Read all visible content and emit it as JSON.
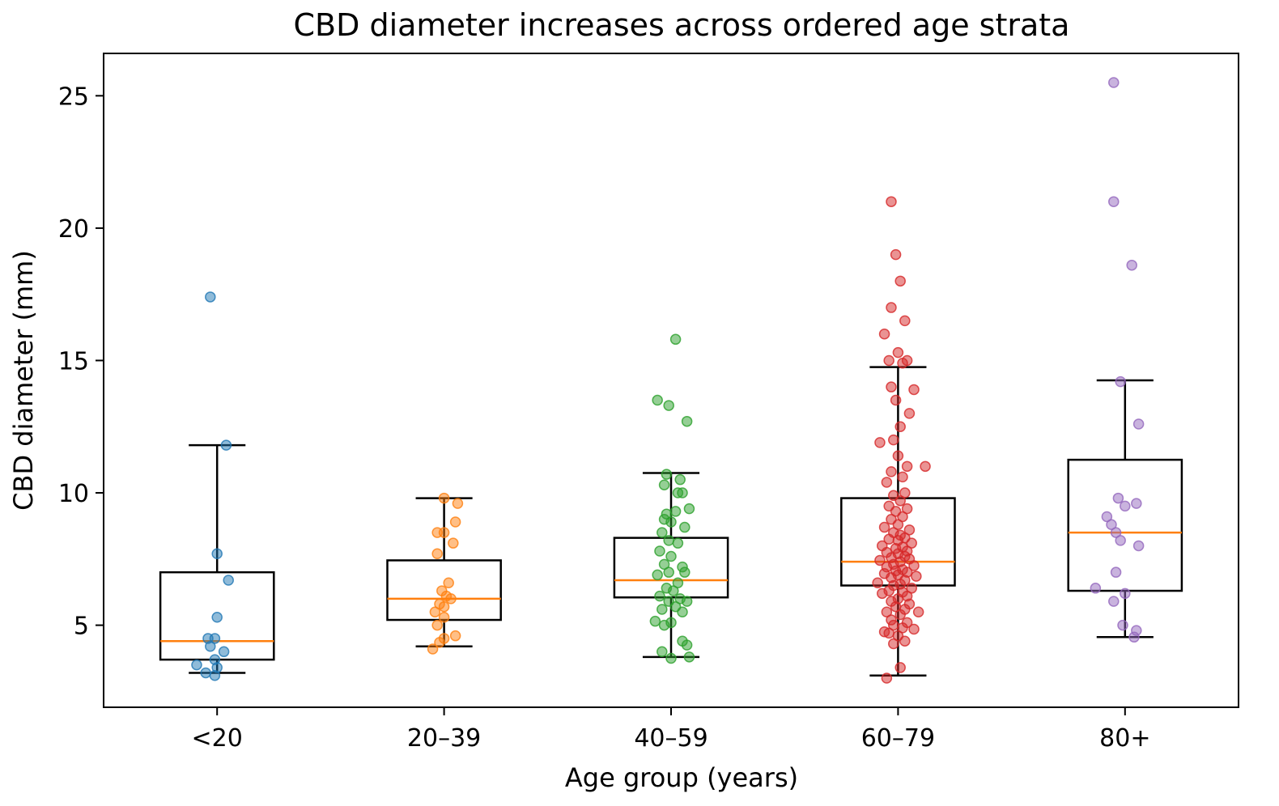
{
  "chart_data": {
    "type": "box",
    "title": "CBD diameter increases across ordered age strata",
    "xlabel": "Age group (years)",
    "ylabel": "CBD diameter (mm)",
    "ylim": [
      1.9,
      26.6
    ],
    "yticks": [
      5,
      10,
      15,
      20,
      25
    ],
    "grid": false,
    "categories": [
      "<20",
      "20–39",
      "40–59",
      "60–79",
      "80+"
    ],
    "colors": [
      "#1f77b4",
      "#ff7f0e",
      "#2ca02c",
      "#d62728",
      "#9467bd"
    ],
    "median_color": "#ff7f0e",
    "boxes": [
      {
        "whisker_low": 3.2,
        "q1": 3.7,
        "median": 4.4,
        "q3": 7.0,
        "whisker_high": 11.8
      },
      {
        "whisker_low": 4.2,
        "q1": 5.2,
        "median": 6.0,
        "q3": 7.45,
        "whisker_high": 9.8
      },
      {
        "whisker_low": 3.8,
        "q1": 6.05,
        "median": 6.7,
        "q3": 8.3,
        "whisker_high": 10.75
      },
      {
        "whisker_low": 3.1,
        "q1": 6.5,
        "median": 7.4,
        "q3": 9.8,
        "whisker_high": 14.75
      },
      {
        "whisker_low": 4.55,
        "q1": 6.3,
        "median": 8.5,
        "q3": 11.25,
        "whisker_high": 14.25
      }
    ],
    "points": [
      [
        {
          "dx": -0.03,
          "y": 17.4
        },
        {
          "dx": 0.04,
          "y": 11.8
        },
        {
          "dx": 0.0,
          "y": 7.7
        },
        {
          "dx": 0.05,
          "y": 6.7
        },
        {
          "dx": 0.0,
          "y": 5.3
        },
        {
          "dx": -0.04,
          "y": 4.5
        },
        {
          "dx": -0.01,
          "y": 4.5
        },
        {
          "dx": -0.03,
          "y": 4.2
        },
        {
          "dx": 0.03,
          "y": 4.0
        },
        {
          "dx": -0.01,
          "y": 3.7
        },
        {
          "dx": -0.09,
          "y": 3.5
        },
        {
          "dx": 0.0,
          "y": 3.4
        },
        {
          "dx": -0.05,
          "y": 3.2
        },
        {
          "dx": -0.01,
          "y": 3.1
        }
      ],
      [
        {
          "dx": 0.0,
          "y": 9.8
        },
        {
          "dx": 0.06,
          "y": 9.6
        },
        {
          "dx": 0.05,
          "y": 8.9
        },
        {
          "dx": -0.03,
          "y": 8.5
        },
        {
          "dx": 0.0,
          "y": 8.5
        },
        {
          "dx": 0.04,
          "y": 8.1
        },
        {
          "dx": -0.03,
          "y": 7.7
        },
        {
          "dx": 0.02,
          "y": 6.6
        },
        {
          "dx": -0.01,
          "y": 6.3
        },
        {
          "dx": 0.01,
          "y": 6.1
        },
        {
          "dx": 0.03,
          "y": 6.0
        },
        {
          "dx": -0.02,
          "y": 5.8
        },
        {
          "dx": 0.0,
          "y": 5.7
        },
        {
          "dx": -0.04,
          "y": 5.5
        },
        {
          "dx": 0.0,
          "y": 5.3
        },
        {
          "dx": -0.03,
          "y": 5.0
        },
        {
          "dx": 0.05,
          "y": 4.6
        },
        {
          "dx": 0.0,
          "y": 4.5
        },
        {
          "dx": -0.02,
          "y": 4.35
        },
        {
          "dx": -0.05,
          "y": 4.1
        }
      ],
      [
        {
          "dx": 0.02,
          "y": 15.8
        },
        {
          "dx": -0.06,
          "y": 13.5
        },
        {
          "dx": -0.01,
          "y": 13.3
        },
        {
          "dx": 0.07,
          "y": 12.7
        },
        {
          "dx": -0.02,
          "y": 10.7
        },
        {
          "dx": 0.04,
          "y": 10.5
        },
        {
          "dx": -0.03,
          "y": 10.3
        },
        {
          "dx": 0.03,
          "y": 10.0
        },
        {
          "dx": 0.05,
          "y": 10.0
        },
        {
          "dx": 0.08,
          "y": 9.4
        },
        {
          "dx": -0.02,
          "y": 9.2
        },
        {
          "dx": 0.02,
          "y": 9.3
        },
        {
          "dx": -0.03,
          "y": 9.0
        },
        {
          "dx": 0.0,
          "y": 8.9
        },
        {
          "dx": 0.06,
          "y": 8.7
        },
        {
          "dx": -0.04,
          "y": 8.5
        },
        {
          "dx": -0.01,
          "y": 8.2
        },
        {
          "dx": 0.03,
          "y": 8.1
        },
        {
          "dx": -0.05,
          "y": 7.8
        },
        {
          "dx": 0.0,
          "y": 7.6
        },
        {
          "dx": -0.03,
          "y": 7.3
        },
        {
          "dx": 0.05,
          "y": 7.2
        },
        {
          "dx": -0.01,
          "y": 7.0
        },
        {
          "dx": 0.06,
          "y": 7.0
        },
        {
          "dx": -0.06,
          "y": 6.9
        },
        {
          "dx": 0.03,
          "y": 6.6
        },
        {
          "dx": -0.02,
          "y": 6.4
        },
        {
          "dx": 0.01,
          "y": 6.3
        },
        {
          "dx": -0.05,
          "y": 6.1
        },
        {
          "dx": 0.04,
          "y": 6.0
        },
        {
          "dx": 0.07,
          "y": 5.9
        },
        {
          "dx": -0.01,
          "y": 5.9
        },
        {
          "dx": 0.02,
          "y": 5.7
        },
        {
          "dx": -0.04,
          "y": 5.6
        },
        {
          "dx": 0.05,
          "y": 5.5
        },
        {
          "dx": -0.07,
          "y": 5.15
        },
        {
          "dx": 0.0,
          "y": 5.1
        },
        {
          "dx": -0.03,
          "y": 5.0
        },
        {
          "dx": 0.05,
          "y": 4.4
        },
        {
          "dx": 0.07,
          "y": 4.25
        },
        {
          "dx": -0.04,
          "y": 4.0
        },
        {
          "dx": 0.08,
          "y": 3.8
        },
        {
          "dx": 0.0,
          "y": 3.75
        }
      ],
      [
        {
          "dx": -0.03,
          "y": 21.0
        },
        {
          "dx": -0.01,
          "y": 19.0
        },
        {
          "dx": 0.01,
          "y": 18.0
        },
        {
          "dx": -0.03,
          "y": 17.0
        },
        {
          "dx": 0.03,
          "y": 16.5
        },
        {
          "dx": -0.06,
          "y": 16.0
        },
        {
          "dx": 0.0,
          "y": 15.3
        },
        {
          "dx": 0.04,
          "y": 15.0
        },
        {
          "dx": -0.04,
          "y": 15.0
        },
        {
          "dx": 0.02,
          "y": 14.9
        },
        {
          "dx": -0.03,
          "y": 14.0
        },
        {
          "dx": 0.07,
          "y": 13.9
        },
        {
          "dx": -0.01,
          "y": 13.5
        },
        {
          "dx": 0.05,
          "y": 13.0
        },
        {
          "dx": 0.01,
          "y": 12.5
        },
        {
          "dx": -0.02,
          "y": 12.0
        },
        {
          "dx": -0.08,
          "y": 11.9
        },
        {
          "dx": 0.0,
          "y": 11.4
        },
        {
          "dx": 0.12,
          "y": 11.0
        },
        {
          "dx": 0.04,
          "y": 11.0
        },
        {
          "dx": -0.03,
          "y": 10.8
        },
        {
          "dx": 0.02,
          "y": 10.6
        },
        {
          "dx": -0.05,
          "y": 10.4
        },
        {
          "dx": 0.03,
          "y": 10.0
        },
        {
          "dx": -0.02,
          "y": 9.9
        },
        {
          "dx": 0.01,
          "y": 9.7
        },
        {
          "dx": -0.04,
          "y": 9.5
        },
        {
          "dx": 0.04,
          "y": 9.4
        },
        {
          "dx": -0.01,
          "y": 9.3
        },
        {
          "dx": 0.02,
          "y": 9.1
        },
        {
          "dx": -0.03,
          "y": 9.0
        },
        {
          "dx": 0.0,
          "y": 8.8
        },
        {
          "dx": -0.06,
          "y": 8.7
        },
        {
          "dx": 0.05,
          "y": 8.6
        },
        {
          "dx": -0.02,
          "y": 8.5
        },
        {
          "dx": 0.01,
          "y": 8.4
        },
        {
          "dx": 0.03,
          "y": 8.3
        },
        {
          "dx": -0.04,
          "y": 8.25
        },
        {
          "dx": 0.0,
          "y": 8.2
        },
        {
          "dx": 0.06,
          "y": 8.1
        },
        {
          "dx": -0.07,
          "y": 8.0
        },
        {
          "dx": 0.02,
          "y": 7.95
        },
        {
          "dx": -0.01,
          "y": 7.9
        },
        {
          "dx": 0.04,
          "y": 7.8
        },
        {
          "dx": -0.05,
          "y": 7.75
        },
        {
          "dx": 0.0,
          "y": 7.7
        },
        {
          "dx": 0.03,
          "y": 7.6
        },
        {
          "dx": -0.03,
          "y": 7.55
        },
        {
          "dx": 0.05,
          "y": 7.5
        },
        {
          "dx": -0.08,
          "y": 7.45
        },
        {
          "dx": 0.01,
          "y": 7.4
        },
        {
          "dx": -0.02,
          "y": 7.3
        },
        {
          "dx": 0.07,
          "y": 7.25
        },
        {
          "dx": -0.05,
          "y": 7.2
        },
        {
          "dx": 0.02,
          "y": 7.1
        },
        {
          "dx": -0.01,
          "y": 7.05
        },
        {
          "dx": 0.04,
          "y": 7.0
        },
        {
          "dx": -0.06,
          "y": 6.95
        },
        {
          "dx": 0.0,
          "y": 6.9
        },
        {
          "dx": 0.08,
          "y": 6.85
        },
        {
          "dx": -0.03,
          "y": 6.8
        },
        {
          "dx": 0.03,
          "y": 6.7
        },
        {
          "dx": -0.09,
          "y": 6.6
        },
        {
          "dx": 0.01,
          "y": 6.55
        },
        {
          "dx": -0.02,
          "y": 6.5
        },
        {
          "dx": 0.06,
          "y": 6.4
        },
        {
          "dx": -0.04,
          "y": 6.3
        },
        {
          "dx": 0.02,
          "y": 6.25
        },
        {
          "dx": -0.07,
          "y": 6.2
        },
        {
          "dx": 0.04,
          "y": 6.1
        },
        {
          "dx": 0.0,
          "y": 6.0
        },
        {
          "dx": -0.03,
          "y": 5.9
        },
        {
          "dx": 0.05,
          "y": 5.8
        },
        {
          "dx": -0.01,
          "y": 5.7
        },
        {
          "dx": 0.03,
          "y": 5.6
        },
        {
          "dx": 0.09,
          "y": 5.5
        },
        {
          "dx": -0.05,
          "y": 5.5
        },
        {
          "dx": 0.01,
          "y": 5.4
        },
        {
          "dx": -0.03,
          "y": 5.2
        },
        {
          "dx": 0.04,
          "y": 5.1
        },
        {
          "dx": -0.02,
          "y": 5.0
        },
        {
          "dx": 0.02,
          "y": 4.9
        },
        {
          "dx": 0.07,
          "y": 4.85
        },
        {
          "dx": -0.06,
          "y": 4.75
        },
        {
          "dx": -0.04,
          "y": 4.7
        },
        {
          "dx": 0.0,
          "y": 4.6
        },
        {
          "dx": 0.03,
          "y": 4.4
        },
        {
          "dx": -0.02,
          "y": 4.3
        },
        {
          "dx": 0.01,
          "y": 3.4
        },
        {
          "dx": -0.05,
          "y": 3.0
        }
      ],
      [
        {
          "dx": -0.05,
          "y": 25.5
        },
        {
          "dx": -0.05,
          "y": 21.0
        },
        {
          "dx": 0.03,
          "y": 18.6
        },
        {
          "dx": -0.02,
          "y": 14.2
        },
        {
          "dx": 0.06,
          "y": 12.6
        },
        {
          "dx": -0.03,
          "y": 9.8
        },
        {
          "dx": 0.05,
          "y": 9.6
        },
        {
          "dx": 0.0,
          "y": 9.5
        },
        {
          "dx": -0.08,
          "y": 9.1
        },
        {
          "dx": -0.06,
          "y": 8.8
        },
        {
          "dx": -0.04,
          "y": 8.5
        },
        {
          "dx": -0.02,
          "y": 8.2
        },
        {
          "dx": 0.06,
          "y": 8.0
        },
        {
          "dx": -0.04,
          "y": 7.0
        },
        {
          "dx": -0.13,
          "y": 6.4
        },
        {
          "dx": 0.0,
          "y": 6.2
        },
        {
          "dx": -0.05,
          "y": 5.9
        },
        {
          "dx": -0.01,
          "y": 5.0
        },
        {
          "dx": 0.05,
          "y": 4.8
        },
        {
          "dx": 0.04,
          "y": 4.55
        }
      ]
    ]
  }
}
